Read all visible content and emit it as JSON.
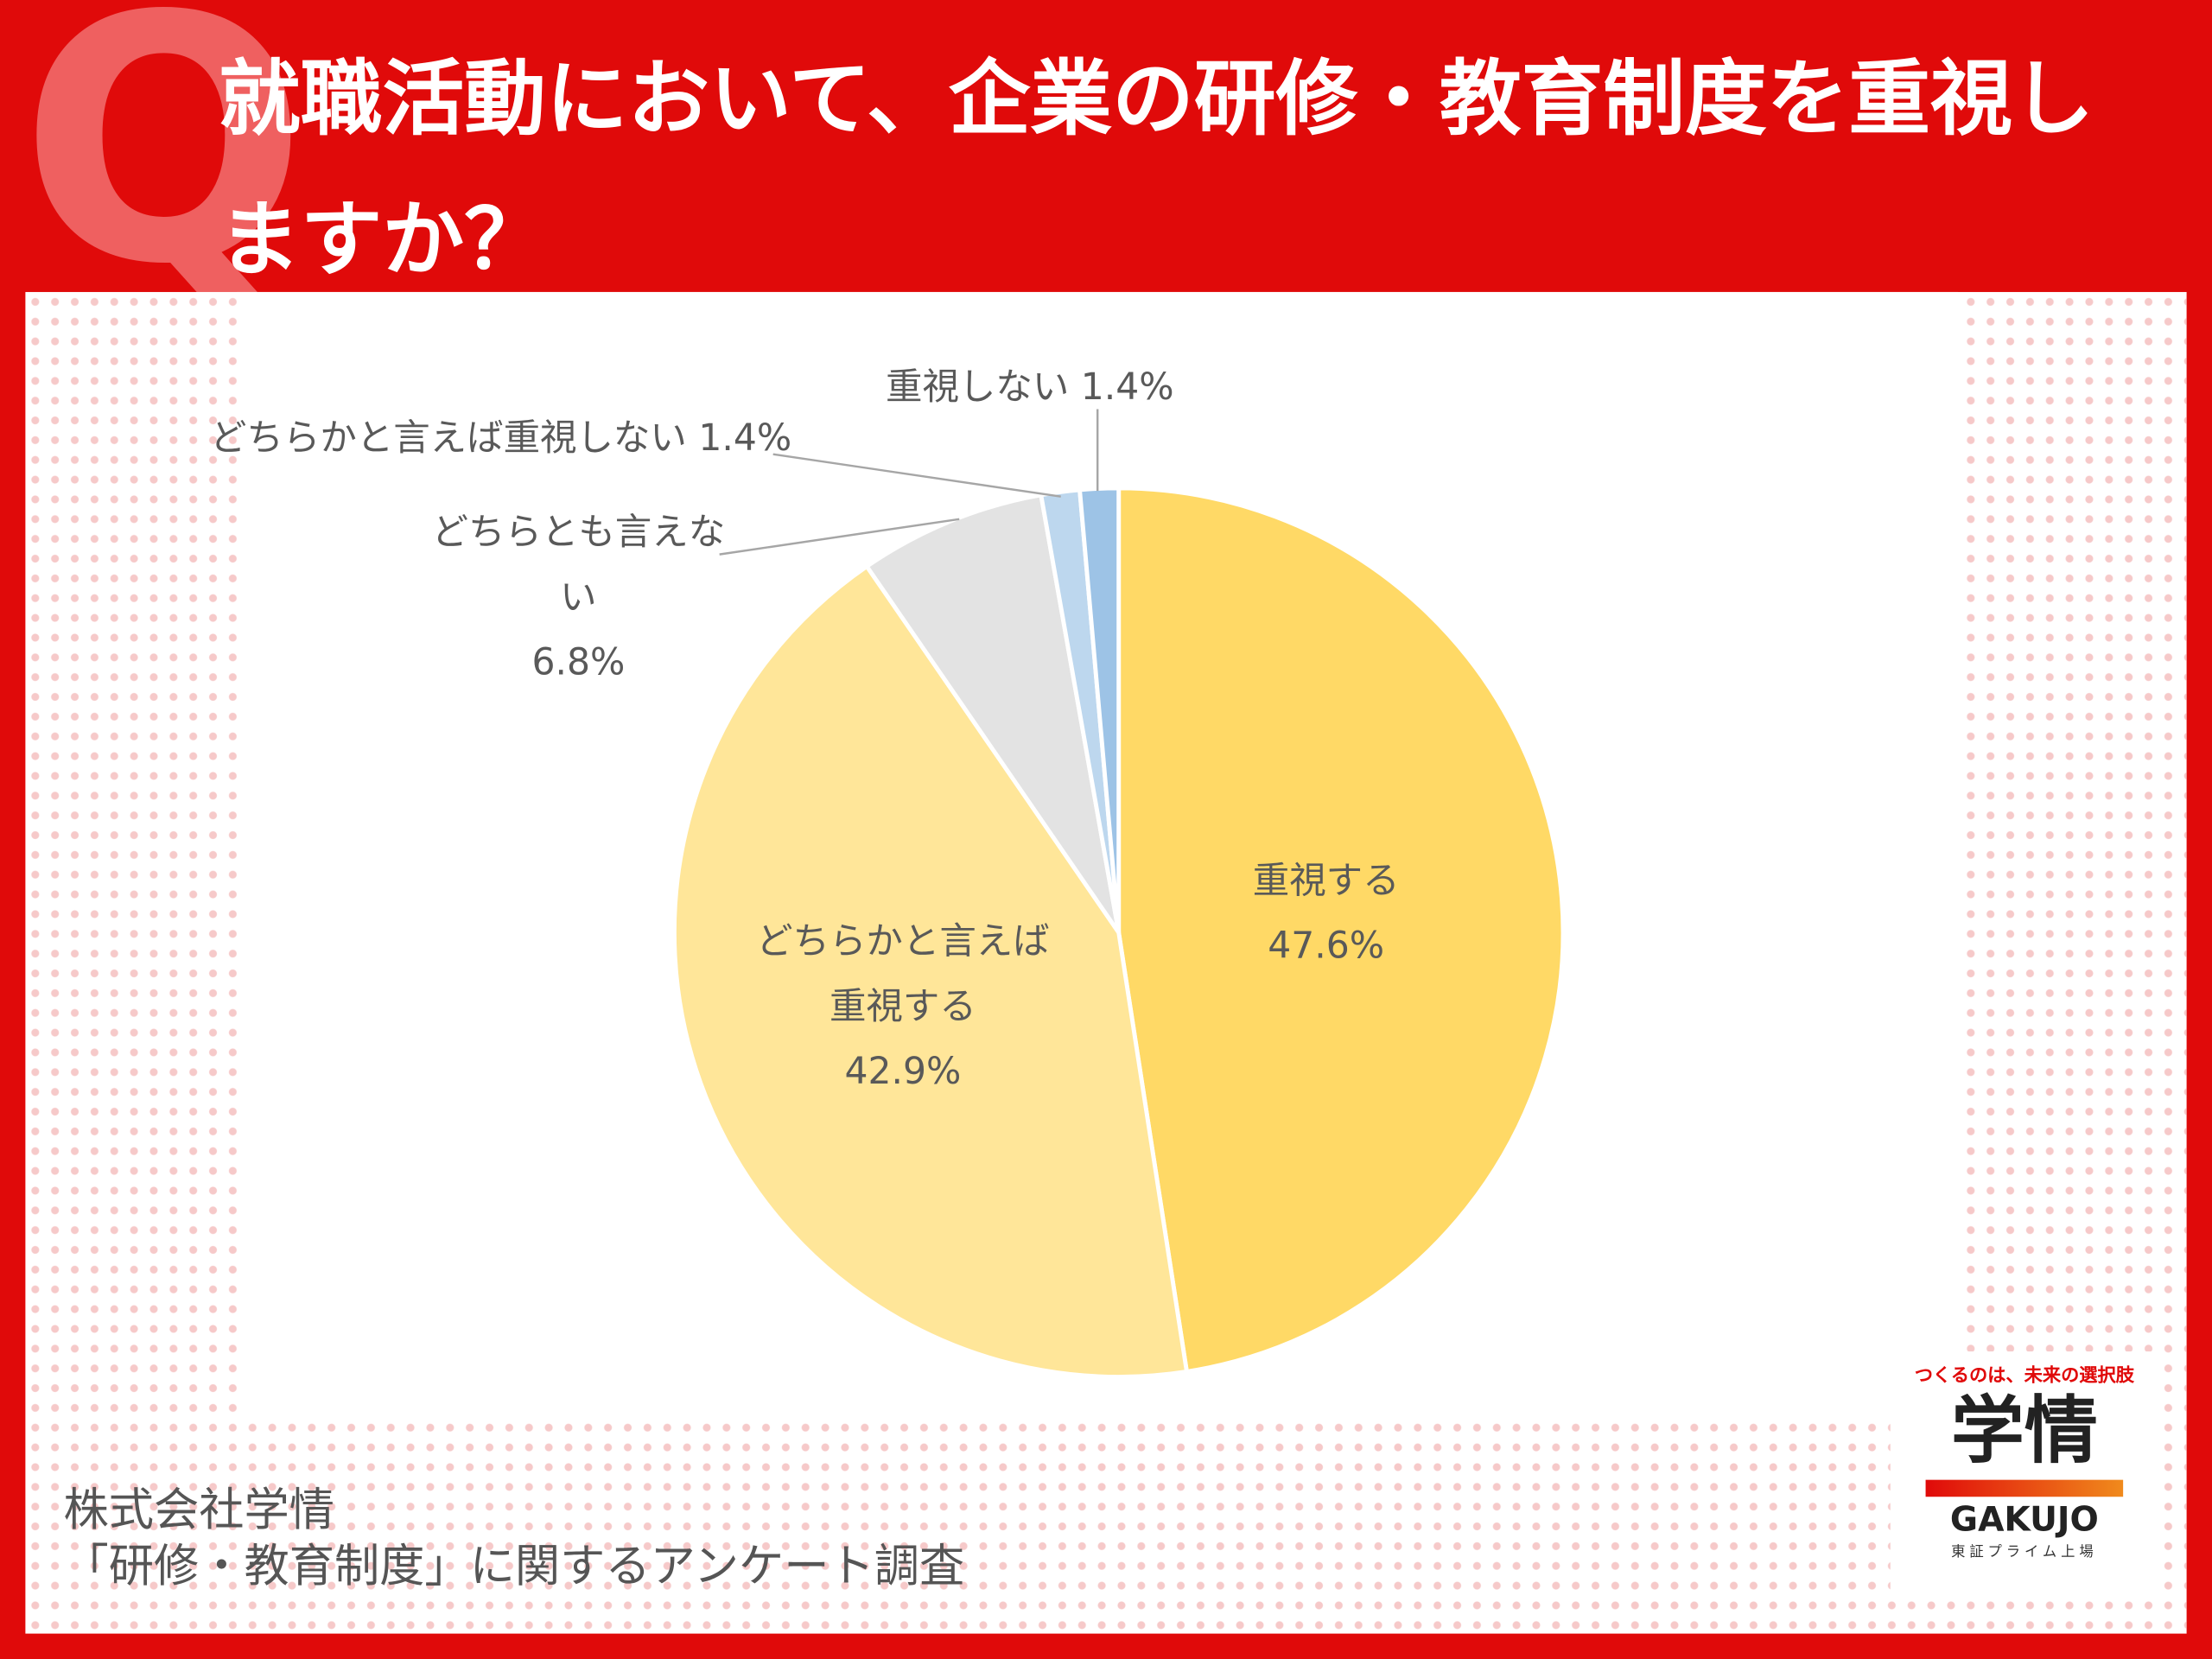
{
  "header": {
    "badge": "Q",
    "title": "就職活動において、企業の研修・教育制度を重視しますか？"
  },
  "chart_data": {
    "type": "pie",
    "categories": [
      "重視する",
      "どちらかと言えば重視する",
      "どちらとも言えない",
      "どちらかと言えば重視しない",
      "重視しない"
    ],
    "values": [
      47.6,
      42.9,
      6.8,
      1.4,
      1.4
    ],
    "value_labels": [
      "47.6%",
      "42.9%",
      "6.8%",
      "1.4%",
      "1.4%"
    ],
    "colors": [
      "#ffd966",
      "#ffe699",
      "#e3e3e3",
      "#bdd7ee",
      "#9dc3e6"
    ]
  },
  "footer": {
    "company": "株式会社学情",
    "survey": "「研修・教育制度」に関するアンケート調査"
  },
  "logo": {
    "tagline": "つくるのは、未来の選択肢",
    "mark": "学情",
    "name": "GAKUJO",
    "listing": "東証プライム上場"
  }
}
